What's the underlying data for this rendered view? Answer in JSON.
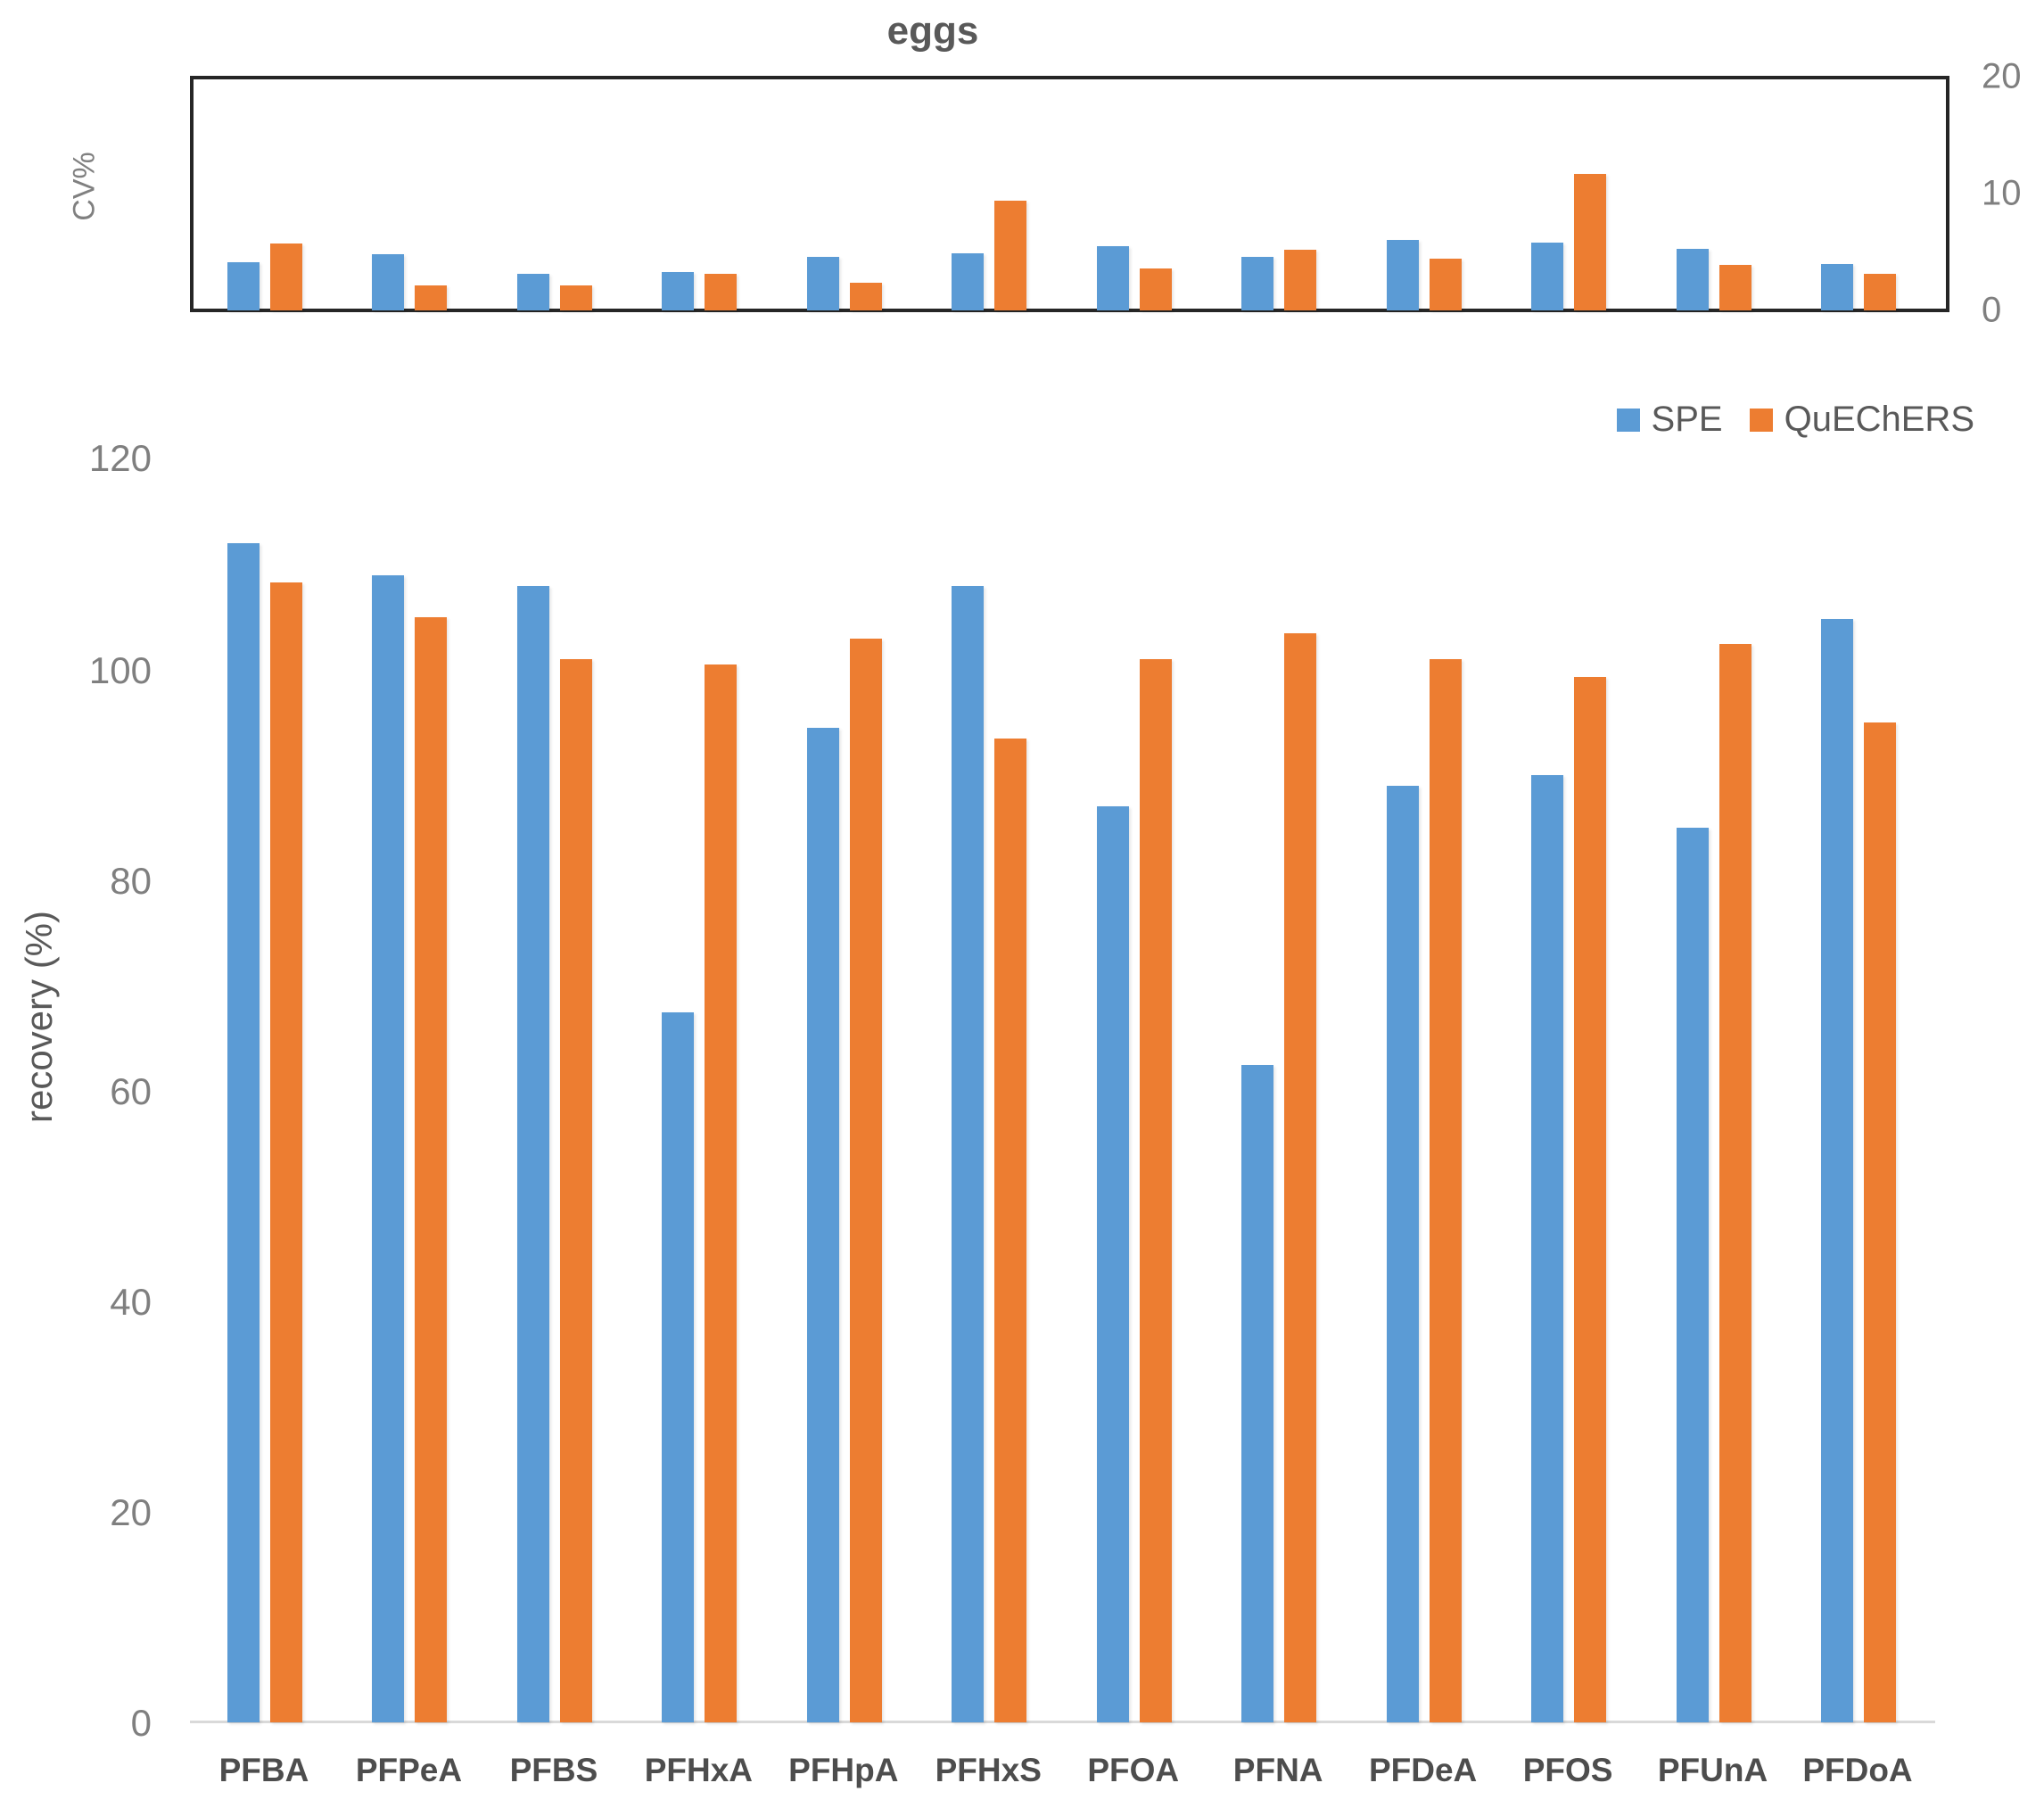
{
  "figure": {
    "title": "eggs",
    "legend": {
      "items": [
        {
          "label": "SPE",
          "color": "#5B9BD5"
        },
        {
          "label": "QuEChERS",
          "color": "#ED7D31"
        }
      ]
    },
    "colors": {
      "spe_blue": "#5B9BD5",
      "quechers_orange": "#ED7D31",
      "axis_text_gray": "#7f7f7f",
      "title_gray": "#595959",
      "box_border": "#262626",
      "baseline_gray": "#d9d9d9"
    }
  },
  "chart_data": [
    {
      "type": "bar",
      "title": "eggs",
      "ylabel": "CV%",
      "ylabel_side": "left-rotated",
      "yaxis_side": "right",
      "ylim": [
        0,
        20
      ],
      "yticks": [
        "20",
        "10",
        "0"
      ],
      "ytick_values": [
        20,
        10,
        0
      ],
      "grid": false,
      "categories": [
        "PFBA",
        "PFPeA",
        "PFBS",
        "PFHxA",
        "PFHpA",
        "PFHxS",
        "PFOA",
        "PFNA",
        "PFDeA",
        "PFOS",
        "PFUnA",
        "PFDoA"
      ],
      "series": [
        {
          "name": "SPE",
          "values": [
            4.1,
            4.8,
            3.1,
            3.3,
            4.6,
            4.9,
            5.5,
            4.6,
            6.0,
            5.8,
            5.3,
            4.0
          ]
        },
        {
          "name": "QuEChERS",
          "values": [
            5.7,
            2.1,
            2.1,
            3.1,
            2.4,
            9.4,
            3.6,
            5.2,
            4.4,
            11.7,
            3.9,
            3.1
          ]
        }
      ]
    },
    {
      "type": "bar",
      "title": "",
      "ylabel": "recovery (%)",
      "ylabel_side": "left-rotated",
      "yaxis_side": "left",
      "ylim": [
        0,
        120
      ],
      "yticks": [
        "120",
        "100",
        "80",
        "60",
        "40",
        "20",
        "0"
      ],
      "ytick_values": [
        120,
        100,
        80,
        60,
        40,
        20,
        0
      ],
      "grid": false,
      "legend_position": "top-right",
      "categories": [
        "PFBA",
        "PFPeA",
        "PFBS",
        "PFHxA",
        "PFHpA",
        "PFHxS",
        "PFOA",
        "PFNA",
        "PFDeA",
        "PFOS",
        "PFUnA",
        "PFDoA"
      ],
      "series": [
        {
          "name": "SPE",
          "values": [
            112,
            109,
            108,
            67.5,
            94.5,
            108,
            87,
            62.5,
            89,
            90,
            85,
            104.8
          ]
        },
        {
          "name": "QuEChERS",
          "values": [
            108.3,
            105,
            101,
            100.5,
            103,
            93.5,
            101,
            103.5,
            101,
            99.3,
            102.5,
            95
          ]
        }
      ]
    }
  ]
}
